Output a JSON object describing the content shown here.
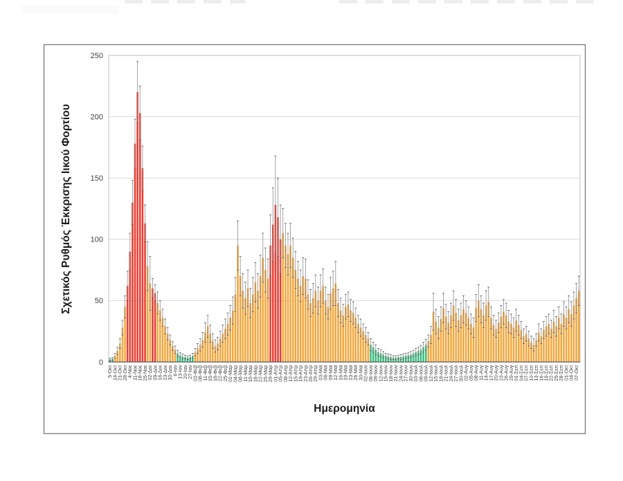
{
  "chart_data": {
    "type": "bar",
    "title": "",
    "ylabel": "Σχετικός Ρυθμός Έκκρισης Ιικού Φορτίου",
    "xlabel": "Ημερομηνία",
    "ylim": [
      0,
      250
    ],
    "yticks": [
      0,
      50,
      100,
      150,
      200,
      250
    ],
    "grid": true,
    "legend": false,
    "label_every": 2,
    "tick_labels": [
      "5-Οκτ",
      "14-Οκτ",
      "21-Οκτ",
      "28-Οκτ",
      "4-Νοε",
      "11-Νοε",
      "18-Νοε",
      "25-Νοε",
      "02-Δεκ",
      "09-Δεκ",
      "16-Δεκ",
      "23-Δεκ",
      "30-Δεκ",
      "6-Ιαν",
      "13-Ιαν",
      "20-Ιαν",
      "27-Ιαν",
      "03-Φεβ",
      "08-Φεβ",
      "11-Φεβ",
      "15-Φεβ",
      "18-Φεβ",
      "22-Φεβ",
      "25-Φεβ",
      "01-Μαρ",
      "04-Μαρ",
      "08-Μαρ",
      "11-Μαρ",
      "15-Μαρ",
      "18-Μαρ",
      "22-Μαρ",
      "25-Μαρ",
      "29-Μαρ",
      "01-Απρ",
      "05-Απρ",
      "08-Απρ",
      "12-Απρ",
      "15-Απρ",
      "19-Απρ",
      "23-Απρ",
      "26-Απρ",
      "29-Απρ",
      "03-Μαϊ",
      "06-Μαϊ",
      "09-Μαϊ",
      "12-Μαϊ",
      "16-Μαϊ",
      "19-Μαϊ",
      "23-Μαϊ",
      "26-Μαϊ",
      "30-Μαϊ",
      "02-Ιουν",
      "06-Ιουν",
      "09-Ιουν",
      "12-Ιουν",
      "15-Ιουν",
      "18-Ιουν",
      "21-Ιουν",
      "24-Ιουν",
      "27-Ιουν",
      "30-Ιουν",
      "03-Ιουλ",
      "06-Ιουλ",
      "09-Ιουλ",
      "12-Ιουλ",
      "15-Ιουλ",
      "18-Ιουλ",
      "21-Ιουλ",
      "24-Ιουλ",
      "27-Ιουλ",
      "30-Ιουλ",
      "02-Αυγ",
      "05-Αυγ",
      "08-Αυγ",
      "11-Αυγ",
      "14-Αυγ",
      "17-Αυγ",
      "20-Αυγ",
      "23-Αυγ",
      "26-Αυγ",
      "29-Αυγ",
      "01-Σεπ",
      "04-Σεπ",
      "07-Σεπ",
      "10-Σεπ",
      "13-Σεπ",
      "16-Σεπ",
      "19-Σεπ",
      "22-Σεπ",
      "25-Σεπ",
      "28-Σεπ",
      "01-Οκτ",
      "04-Οκτ",
      "07-Οκτ"
    ],
    "bars": {
      "values": [
        2,
        2.5,
        5,
        9,
        15,
        28,
        45,
        62,
        90,
        130,
        178,
        220,
        203,
        158,
        113,
        78,
        64,
        60,
        56,
        48,
        42,
        36,
        29,
        23,
        18,
        13,
        10,
        7,
        5.5,
        4.5,
        4,
        3.5,
        4,
        5,
        8,
        11,
        14,
        18,
        24,
        29,
        23,
        17,
        13,
        15,
        19,
        23,
        27,
        31,
        36,
        42,
        55,
        95,
        70,
        58,
        52,
        60,
        48,
        55,
        65,
        58,
        70,
        85,
        75,
        68,
        95,
        112,
        128,
        118,
        100,
        105,
        95,
        88,
        95,
        85,
        75,
        68,
        62,
        70,
        68,
        55,
        48,
        52,
        58,
        50,
        58,
        62,
        50,
        45,
        56,
        60,
        64,
        48,
        42,
        38,
        45,
        47,
        42,
        40,
        36,
        31,
        28,
        25,
        22,
        19,
        14,
        12,
        10,
        8,
        7,
        6,
        5,
        4.5,
        4,
        3.5,
        3.5,
        4,
        4,
        4.5,
        5,
        5.5,
        6,
        7,
        8,
        9,
        10,
        12,
        14,
        17,
        22,
        41,
        33,
        28,
        35,
        44,
        37,
        32,
        38,
        46,
        40,
        34,
        38,
        43,
        40,
        36,
        31,
        28,
        44,
        50,
        43,
        38,
        46,
        49,
        36,
        30,
        27,
        32,
        37,
        41,
        38,
        33,
        31,
        28,
        34,
        30,
        26,
        21,
        23,
        19,
        16,
        14,
        18,
        24,
        21,
        26,
        29,
        31,
        27,
        33,
        29,
        36,
        31,
        39,
        36,
        43,
        39,
        46,
        52,
        58
      ],
      "errors": [
        1,
        1,
        2,
        3,
        4,
        6,
        9,
        12,
        15,
        18,
        20,
        25,
        22,
        18,
        15,
        20,
        22,
        8,
        7,
        9,
        8,
        7,
        6,
        5,
        4,
        3.5,
        3,
        2.5,
        2,
        2,
        1.5,
        1.5,
        1.5,
        2,
        3,
        4,
        5,
        6,
        8,
        9,
        7,
        6,
        5,
        5,
        6,
        7,
        8,
        9,
        10,
        11,
        14,
        20,
        16,
        14,
        13,
        15,
        12,
        14,
        16,
        14,
        17,
        20,
        18,
        16,
        25,
        30,
        40,
        32,
        28,
        20,
        18,
        17,
        18,
        16,
        15,
        14,
        13,
        15,
        16,
        12,
        11,
        12,
        13,
        11,
        13,
        14,
        11,
        10,
        13,
        14,
        18,
        11,
        10,
        9,
        10,
        10,
        9,
        9,
        8,
        7,
        7,
        6,
        6,
        5,
        5,
        4,
        4,
        3,
        3,
        2.5,
        2,
        2,
        2,
        1.5,
        1.5,
        1.5,
        2,
        2,
        2,
        2,
        2.5,
        2.5,
        3,
        3,
        3.5,
        4,
        4.5,
        5,
        7,
        15,
        10,
        9,
        10,
        12,
        10,
        9,
        10,
        12,
        11,
        9,
        10,
        11,
        10,
        9,
        8,
        8,
        11,
        13,
        11,
        10,
        12,
        12,
        9,
        8,
        7,
        8,
        9,
        10,
        10,
        9,
        8,
        8,
        9,
        8,
        7,
        6,
        6,
        6,
        5,
        5,
        5,
        7,
        6,
        7,
        8,
        8,
        7,
        9,
        8,
        9,
        8,
        10,
        9,
        11,
        10,
        11,
        12,
        12
      ],
      "colors": "ggooooorrrrrrrroorroooooooogggggggoooooooooooooooooooooooooooooorrrrrooooooooooooooooooooooooooooooooooogggggggggggggggggggggggooooooooooooooooooooooooooooooooooooooooooooooooooooooooooooo"
    },
    "color_key": {
      "g": "#3CBC80",
      "o": "#F3A63B",
      "r": "#E93C31"
    },
    "error_bar_color": "#8C8C8C",
    "error_cap_color": "#595959",
    "gridline_color": "#D9D9D9",
    "axis_color": "#595959",
    "plot_frame_color": "#BFBFBF",
    "figure_frame_color": "#7F7F7F",
    "tick_text_color": "#3F3F3F"
  }
}
